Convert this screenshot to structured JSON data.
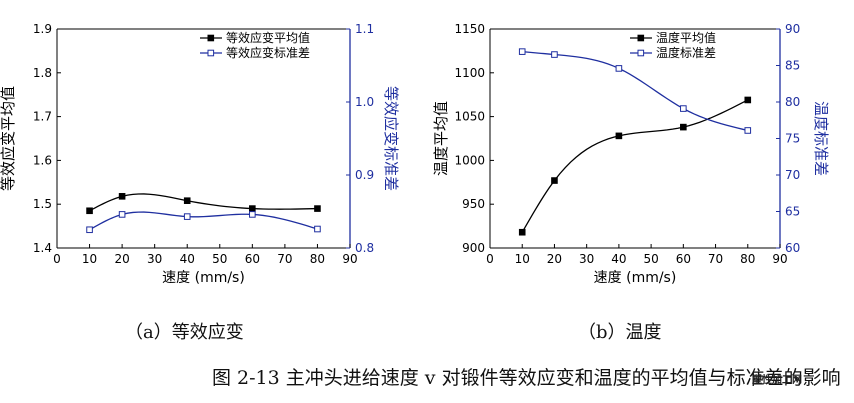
{
  "chart_data": [
    {
      "type": "line",
      "panel": "a",
      "xlabel": "速度 (mm/s)",
      "ylabel_left": "等效应变平均值",
      "ylabel_right": "等效应变标准差",
      "xlim": [
        0,
        90
      ],
      "ylim_left": [
        1.4,
        1.9
      ],
      "ylim_right": [
        0.8,
        1.1
      ],
      "xticks": [
        "0",
        "10",
        "20",
        "30",
        "40",
        "50",
        "60",
        "70",
        "80",
        "90"
      ],
      "yticks_left": [
        "1.4",
        "1.5",
        "1.6",
        "1.7",
        "1.8",
        "1.9"
      ],
      "yticks_right": [
        "0.8",
        "0.9",
        "1.0",
        "1.1"
      ],
      "legend_position": "top-right",
      "series": [
        {
          "name": "等效应变平均值",
          "axis": "left",
          "marker": "filled-square",
          "color": "#000000",
          "x": [
            10,
            20,
            40,
            60,
            80
          ],
          "y": [
            1.485,
            1.518,
            1.508,
            1.49,
            1.49
          ]
        },
        {
          "name": "等效应变标准差",
          "axis": "right",
          "marker": "open-square",
          "color": "#1f2fa0",
          "x": [
            10,
            20,
            40,
            60,
            80
          ],
          "y": [
            0.825,
            0.846,
            0.843,
            0.846,
            0.826
          ]
        }
      ]
    },
    {
      "type": "line",
      "panel": "b",
      "xlabel": "速度 (mm/s)",
      "ylabel_left": "温度平均值",
      "ylabel_right": "温度标准差",
      "xlim": [
        0,
        90
      ],
      "ylim_left": [
        900,
        1150
      ],
      "ylim_right": [
        60,
        90
      ],
      "xticks": [
        "0",
        "10",
        "20",
        "30",
        "40",
        "50",
        "60",
        "70",
        "80",
        "90"
      ],
      "yticks_left": [
        "900",
        "950",
        "1000",
        "1050",
        "1100",
        "1150"
      ],
      "yticks_right": [
        "60",
        "65",
        "70",
        "75",
        "80",
        "85",
        "90"
      ],
      "legend_position": "top-right",
      "series": [
        {
          "name": "温度平均值",
          "axis": "left",
          "marker": "filled-square",
          "color": "#000000",
          "x": [
            10,
            20,
            40,
            60,
            80
          ],
          "y": [
            918,
            977,
            1028,
            1038,
            1069
          ]
        },
        {
          "name": "温度标准差",
          "axis": "right",
          "marker": "open-square",
          "color": "#1f2fa0",
          "x": [
            10,
            20,
            40,
            60,
            80
          ],
          "y": [
            86.9,
            86.5,
            84.6,
            79.1,
            76.1
          ]
        }
      ]
    }
  ],
  "captions": {
    "a": "（a）等效应变",
    "b": "（b）温度",
    "figure": "图 2-13  主冲头进给速度 v 对锻件等效应变和温度的平均值与标准差的影响"
  },
  "watermark": "塑性加工网"
}
